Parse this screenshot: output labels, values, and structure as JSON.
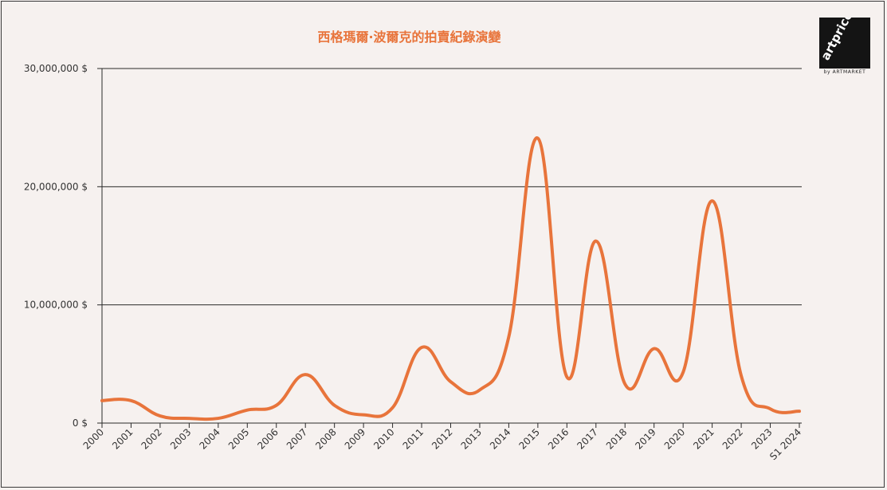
{
  "chart_data": {
    "type": "line",
    "title": "西格瑪爾·波爾克的拍賣紀錄演變",
    "categories": [
      "2000",
      "2001",
      "2002",
      "2003",
      "2004",
      "2005",
      "2006",
      "2007",
      "2008",
      "2009",
      "2010",
      "2011",
      "2012",
      "2013",
      "2014",
      "2015",
      "2016",
      "2017",
      "2018",
      "2019",
      "2020",
      "2021",
      "2022",
      "2023",
      "S1 2024"
    ],
    "values": [
      1900000,
      1900000,
      600000,
      400000,
      400000,
      1100000,
      1500000,
      4100000,
      1500000,
      700000,
      1300000,
      6400000,
      3500000,
      2800000,
      7300000,
      24100000,
      3900000,
      15400000,
      3300000,
      6300000,
      4300000,
      18800000,
      4000000,
      1200000,
      1000000
    ],
    "yticks": [
      0,
      10000000,
      20000000,
      30000000
    ],
    "ytick_labels": [
      "0 $",
      "10,000,000 $",
      "20,000,000 $",
      "30,000,000 $"
    ],
    "ylim": [
      0,
      30000000
    ],
    "grid": true,
    "line_color": "#e8743b",
    "title_color": "#e8743b"
  },
  "logo": {
    "text": "artprice.com",
    "subtext": "by ARTMARKET"
  }
}
